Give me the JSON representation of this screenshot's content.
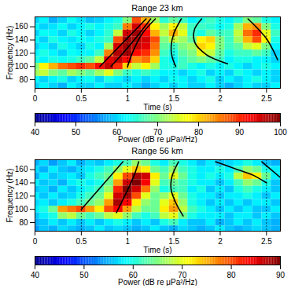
{
  "chart_data": [
    {
      "type": "heatmap",
      "title": "Range 23 km",
      "x_label": "Time (s)",
      "y_label": "Frequency (Hz)",
      "xlim": [
        0,
        2.65
      ],
      "xticks": [
        0,
        0.5,
        1,
        1.5,
        2,
        2.5
      ],
      "ylim": [
        67,
        175
      ],
      "yticks": [
        80,
        100,
        120,
        140,
        160
      ],
      "grid": true,
      "cells": {
        "time": [
          0,
          0.1,
          0.2,
          0.3,
          0.4,
          0.5,
          0.6,
          0.7,
          0.8,
          0.9,
          1,
          1.1,
          1.2,
          1.3,
          1.4,
          1.5,
          1.6,
          1.7,
          1.8,
          1.9,
          2,
          2.1,
          2.2,
          2.3,
          2.4,
          2.5,
          2.6
        ],
        "frequency": [
          170,
          160,
          150,
          140,
          130,
          120,
          110,
          100,
          90,
          80,
          70
        ],
        "power": [
          [
            60,
            62,
            58,
            60,
            63,
            61,
            59,
            60,
            62,
            64,
            70,
            88,
            82,
            72,
            65,
            68,
            66,
            62,
            64,
            66,
            64,
            62,
            65,
            70,
            68,
            64,
            62
          ],
          [
            62,
            60,
            61,
            63,
            60,
            62,
            64,
            62,
            64,
            66,
            85,
            95,
            90,
            78,
            72,
            78,
            74,
            66,
            66,
            65,
            63,
            64,
            72,
            82,
            84,
            70,
            64
          ],
          [
            60,
            63,
            62,
            60,
            64,
            62,
            60,
            62,
            65,
            74,
            95,
            98,
            92,
            82,
            74,
            82,
            76,
            66,
            64,
            68,
            66,
            66,
            74,
            86,
            90,
            76,
            66
          ],
          [
            62,
            60,
            64,
            62,
            61,
            63,
            62,
            64,
            66,
            88,
            98,
            97,
            95,
            88,
            70,
            74,
            72,
            68,
            78,
            80,
            70,
            66,
            72,
            82,
            88,
            78,
            64
          ],
          [
            60,
            62,
            60,
            64,
            62,
            60,
            64,
            62,
            72,
            95,
            98,
            96,
            94,
            86,
            68,
            66,
            70,
            72,
            80,
            78,
            70,
            66,
            68,
            74,
            76,
            70,
            62
          ],
          [
            62,
            64,
            62,
            60,
            63,
            62,
            62,
            66,
            85,
            97,
            98,
            92,
            90,
            84,
            66,
            64,
            68,
            70,
            76,
            74,
            68,
            64,
            66,
            66,
            68,
            66,
            60
          ],
          [
            64,
            62,
            64,
            63,
            64,
            66,
            68,
            74,
            94,
            96,
            92,
            84,
            86,
            80,
            64,
            62,
            66,
            68,
            70,
            68,
            66,
            62,
            64,
            64,
            62,
            62,
            60
          ],
          [
            70,
            78,
            82,
            86,
            88,
            90,
            88,
            92,
            96,
            90,
            80,
            74,
            78,
            72,
            64,
            64,
            66,
            64,
            62,
            64,
            62,
            64,
            62,
            60,
            62,
            64,
            62
          ],
          [
            72,
            74,
            70,
            68,
            72,
            70,
            68,
            72,
            76,
            70,
            66,
            64,
            66,
            64,
            62,
            62,
            60,
            62,
            64,
            60,
            62,
            60,
            64,
            62,
            60,
            62,
            60
          ],
          [
            62,
            60,
            62,
            64,
            60,
            62,
            63,
            60,
            64,
            62,
            60,
            62,
            60,
            62,
            60,
            63,
            62,
            60,
            62,
            64,
            60,
            62,
            60,
            62,
            64,
            62,
            60
          ],
          [
            60,
            62,
            60,
            58,
            62,
            60,
            60,
            62,
            60,
            60,
            62,
            60,
            58,
            60,
            62,
            60,
            62,
            60,
            60,
            62,
            60,
            58,
            60,
            62,
            60,
            60,
            62
          ]
        ]
      },
      "color_bar": {
        "label": "Power (dB re μPa²/Hz)",
        "range": [
          40,
          100
        ],
        "ticks": [
          40,
          50,
          60,
          70,
          80,
          90,
          100
        ]
      },
      "curves": [
        {
          "color": "#000000",
          "time": [
            0.7,
            1.2
          ],
          "frequency": [
            100,
            172
          ]
        },
        {
          "color": "#000000",
          "time": [
            0.82,
            0.95,
            1.1,
            1.25
          ],
          "frequency": [
            100,
            120,
            145,
            172
          ]
        },
        {
          "color": "#000000",
          "time": [
            1.0,
            1.05,
            1.15,
            1.3
          ],
          "frequency": [
            100,
            120,
            148,
            172
          ]
        },
        {
          "color": "#000000",
          "time": [
            1.58,
            1.5,
            1.47,
            1.48,
            1.52
          ],
          "frequency": [
            172,
            150,
            130,
            115,
            100
          ]
        },
        {
          "color": "#000000",
          "time": [
            1.8,
            1.72,
            1.73,
            1.85,
            2.0,
            2.08
          ],
          "frequency": [
            172,
            155,
            135,
            118,
            108,
            104
          ]
        },
        {
          "color": "#000000",
          "time": [
            2.3,
            2.4,
            2.5,
            2.57,
            2.62
          ],
          "frequency": [
            172,
            158,
            142,
            125,
            110
          ]
        }
      ]
    },
    {
      "type": "heatmap",
      "title": "Range 56 km",
      "x_label": "Time (s)",
      "y_label": "Frequency (Hz)",
      "xlim": [
        0,
        2.65
      ],
      "xticks": [
        0,
        0.5,
        1,
        1.5,
        2,
        2.5
      ],
      "ylim": [
        67,
        175
      ],
      "yticks": [
        80,
        100,
        120,
        140,
        160
      ],
      "grid": true,
      "cells": {
        "time": [
          0,
          0.1,
          0.2,
          0.3,
          0.4,
          0.5,
          0.6,
          0.7,
          0.8,
          0.9,
          1,
          1.1,
          1.2,
          1.3,
          1.4,
          1.5,
          1.6,
          1.7,
          1.8,
          1.9,
          2,
          2.1,
          2.2,
          2.3,
          2.4,
          2.5,
          2.6
        ],
        "frequency": [
          170,
          160,
          150,
          140,
          130,
          120,
          110,
          100,
          90,
          80,
          70
        ],
        "power": [
          [
            55,
            57,
            54,
            56,
            58,
            55,
            57,
            56,
            58,
            60,
            62,
            66,
            64,
            60,
            58,
            62,
            60,
            58,
            56,
            58,
            56,
            57,
            58,
            60,
            58,
            56,
            55
          ],
          [
            57,
            55,
            58,
            56,
            55,
            57,
            58,
            60,
            62,
            66,
            70,
            74,
            72,
            64,
            62,
            66,
            62,
            60,
            58,
            58,
            60,
            58,
            62,
            66,
            64,
            60,
            58
          ],
          [
            55,
            58,
            56,
            57,
            58,
            56,
            60,
            62,
            64,
            72,
            80,
            88,
            86,
            72,
            64,
            70,
            64,
            60,
            58,
            60,
            58,
            60,
            68,
            74,
            72,
            64,
            58
          ],
          [
            58,
            56,
            57,
            55,
            58,
            60,
            58,
            60,
            64,
            76,
            86,
            90,
            84,
            70,
            62,
            64,
            62,
            60,
            58,
            58,
            56,
            58,
            62,
            66,
            64,
            60,
            56
          ],
          [
            56,
            57,
            55,
            58,
            56,
            58,
            60,
            62,
            66,
            82,
            90,
            86,
            78,
            66,
            60,
            62,
            62,
            58,
            60,
            56,
            58,
            56,
            60,
            62,
            60,
            58,
            56
          ],
          [
            58,
            56,
            58,
            56,
            57,
            60,
            62,
            64,
            70,
            86,
            88,
            80,
            70,
            64,
            66,
            70,
            64,
            60,
            58,
            58,
            56,
            58,
            58,
            60,
            58,
            56,
            58
          ],
          [
            57,
            58,
            56,
            58,
            60,
            62,
            64,
            66,
            76,
            88,
            84,
            72,
            66,
            64,
            70,
            74,
            66,
            60,
            58,
            56,
            58,
            56,
            58,
            56,
            58,
            58,
            56
          ],
          [
            58,
            60,
            64,
            76,
            78,
            80,
            76,
            72,
            80,
            84,
            76,
            68,
            64,
            64,
            72,
            76,
            68,
            62,
            60,
            58,
            56,
            58,
            56,
            58,
            56,
            56,
            58
          ],
          [
            56,
            58,
            60,
            66,
            68,
            64,
            62,
            64,
            68,
            70,
            66,
            62,
            60,
            62,
            68,
            70,
            64,
            60,
            58,
            58,
            58,
            56,
            58,
            58,
            56,
            58,
            56
          ],
          [
            55,
            56,
            58,
            56,
            58,
            56,
            58,
            56,
            58,
            60,
            58,
            56,
            58,
            56,
            60,
            62,
            58,
            56,
            56,
            58,
            55,
            56,
            58,
            56,
            58,
            56,
            55
          ],
          [
            54,
            56,
            55,
            57,
            56,
            55,
            56,
            58,
            56,
            57,
            56,
            55,
            56,
            58,
            56,
            55,
            57,
            56,
            55,
            56,
            58,
            56,
            55,
            56,
            57,
            56,
            55
          ]
        ]
      },
      "color_bar": {
        "label": "Power (dB re μPa²/Hz)",
        "range": [
          40,
          90
        ],
        "ticks": [
          40,
          50,
          60,
          70,
          80,
          90
        ]
      },
      "curves": [
        {
          "color": "#000000",
          "time": [
            0.5,
            0.95
          ],
          "frequency": [
            100,
            172
          ]
        },
        {
          "color": "#000000",
          "time": [
            0.88,
            0.95,
            1.02,
            1.08,
            1.12
          ],
          "frequency": [
            95,
            115,
            135,
            155,
            172
          ]
        },
        {
          "color": "#000000",
          "time": [
            1.55,
            1.48,
            1.47,
            1.52,
            1.6
          ],
          "frequency": [
            172,
            150,
            130,
            110,
            90
          ]
        },
        {
          "color": "#000000",
          "time": [
            1.95,
            2.15,
            2.35,
            2.5
          ],
          "frequency": [
            172,
            162,
            152,
            140
          ]
        },
        {
          "color": "#000000",
          "time": [
            2.45,
            2.55,
            2.65
          ],
          "frequency": [
            172,
            160,
            148
          ]
        }
      ]
    }
  ]
}
